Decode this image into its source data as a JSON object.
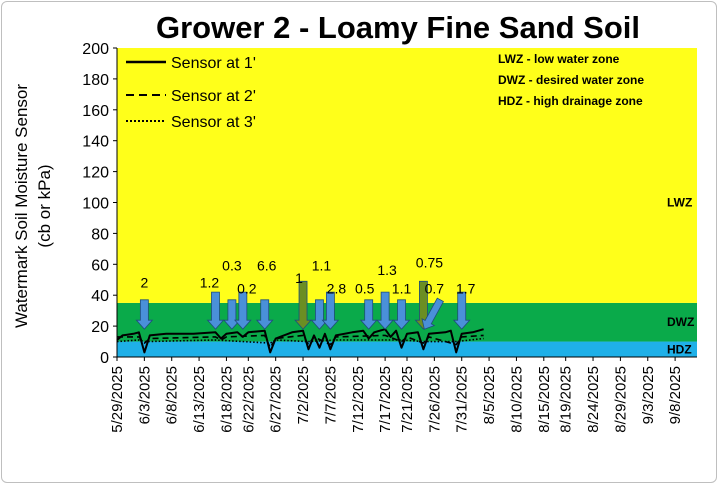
{
  "chart_data": {
    "type": "line",
    "title": "Grower 2 - Loamy Fine Sand Soil",
    "ylabel_line1": "Watermark Soil Moisture Sensor",
    "ylabel_line2": "(cb or kPa)",
    "ylim": [
      0,
      200
    ],
    "yticks": [
      0,
      20,
      40,
      60,
      80,
      100,
      120,
      140,
      160,
      180,
      200
    ],
    "xlim": [
      "2025-05-29",
      "2025-09-12"
    ],
    "xticks": [
      {
        "date": "2025-05-29",
        "label": "5/29/2025"
      },
      {
        "date": "2025-06-03",
        "label": "6/3/2025"
      },
      {
        "date": "2025-06-08",
        "label": "6/8/2025"
      },
      {
        "date": "2025-06-13",
        "label": "6/13/2025"
      },
      {
        "date": "2025-06-18",
        "label": "6/18/2025"
      },
      {
        "date": "2025-06-22",
        "label": "6/22/2025"
      },
      {
        "date": "2025-06-27",
        "label": "6/27/2025"
      },
      {
        "date": "2025-07-02",
        "label": "7/2/2025"
      },
      {
        "date": "2025-07-07",
        "label": "7/7/2025"
      },
      {
        "date": "2025-07-12",
        "label": "7/12/2025"
      },
      {
        "date": "2025-07-17",
        "label": "7/17/2025"
      },
      {
        "date": "2025-07-21",
        "label": "7/21/2025"
      },
      {
        "date": "2025-07-26",
        "label": "7/26/2025"
      },
      {
        "date": "2025-07-31",
        "label": "7/31/2025"
      },
      {
        "date": "2025-08-05",
        "label": "8/5/2025"
      },
      {
        "date": "2025-08-10",
        "label": "8/10/2025"
      },
      {
        "date": "2025-08-15",
        "label": "8/15/2025"
      },
      {
        "date": "2025-08-19",
        "label": "8/19/2025"
      },
      {
        "date": "2025-08-24",
        "label": "8/24/2025"
      },
      {
        "date": "2025-08-29",
        "label": "8/29/2025"
      },
      {
        "date": "2025-09-03",
        "label": "9/3/2025"
      },
      {
        "date": "2025-09-08",
        "label": "9/8/2025"
      }
    ],
    "zones": [
      {
        "name": "HDZ",
        "from": 0,
        "to": 10,
        "color": "#1fb0e8"
      },
      {
        "name": "DWZ",
        "from": 10,
        "to": 35,
        "color": "#0aaa4a"
      },
      {
        "name": "LWZ",
        "from": 35,
        "to": 200,
        "color": "#ffff1a"
      }
    ],
    "zone_definitions": [
      "LWZ  - low water zone",
      "DWZ - desired water zone",
      "HDZ - high drainage zone"
    ],
    "legend_position": "top-left",
    "series": [
      {
        "name": "Sensor at 1'",
        "dash": "solid",
        "color": "#000000",
        "points": [
          [
            "2025-05-29",
            11
          ],
          [
            "2025-05-30",
            14
          ],
          [
            "2025-06-01",
            15
          ],
          [
            "2025-06-02",
            16
          ],
          [
            "2025-06-03",
            3
          ],
          [
            "2025-06-04",
            14
          ],
          [
            "2025-06-07",
            15
          ],
          [
            "2025-06-12",
            15
          ],
          [
            "2025-06-16",
            16
          ],
          [
            "2025-06-17",
            12
          ],
          [
            "2025-06-18",
            15
          ],
          [
            "2025-06-20",
            16
          ],
          [
            "2025-06-21",
            13
          ],
          [
            "2025-06-22",
            16
          ],
          [
            "2025-06-25",
            17
          ],
          [
            "2025-06-26",
            3
          ],
          [
            "2025-06-27",
            12
          ],
          [
            "2025-06-30",
            16
          ],
          [
            "2025-07-02",
            17
          ],
          [
            "2025-07-03",
            5
          ],
          [
            "2025-07-04",
            14
          ],
          [
            "2025-07-05",
            6
          ],
          [
            "2025-07-06",
            15
          ],
          [
            "2025-07-07",
            5
          ],
          [
            "2025-07-08",
            14
          ],
          [
            "2025-07-11",
            16
          ],
          [
            "2025-07-13",
            17
          ],
          [
            "2025-07-14",
            12
          ],
          [
            "2025-07-15",
            16
          ],
          [
            "2025-07-17",
            18
          ],
          [
            "2025-07-18",
            13
          ],
          [
            "2025-07-19",
            17
          ],
          [
            "2025-07-20",
            6
          ],
          [
            "2025-07-21",
            15
          ],
          [
            "2025-07-23",
            16
          ],
          [
            "2025-07-24",
            5
          ],
          [
            "2025-07-25",
            15
          ],
          [
            "2025-07-28",
            16
          ],
          [
            "2025-07-29",
            17
          ],
          [
            "2025-07-30",
            3
          ],
          [
            "2025-07-31",
            15
          ],
          [
            "2025-08-02",
            16
          ],
          [
            "2025-08-04",
            18
          ]
        ]
      },
      {
        "name": "Sensor at 2'",
        "dash": "dashed",
        "color": "#000000",
        "points": [
          [
            "2025-05-29",
            13
          ],
          [
            "2025-06-02",
            13
          ],
          [
            "2025-06-03",
            9
          ],
          [
            "2025-06-04",
            12
          ],
          [
            "2025-06-16",
            13
          ],
          [
            "2025-06-17",
            11
          ],
          [
            "2025-06-18",
            13
          ],
          [
            "2025-06-25",
            14
          ],
          [
            "2025-06-26",
            6
          ],
          [
            "2025-06-27",
            12
          ],
          [
            "2025-07-02",
            14
          ],
          [
            "2025-07-03",
            8
          ],
          [
            "2025-07-04",
            13
          ],
          [
            "2025-07-07",
            8
          ],
          [
            "2025-07-08",
            13
          ],
          [
            "2025-07-17",
            14
          ],
          [
            "2025-07-20",
            10
          ],
          [
            "2025-07-21",
            13
          ],
          [
            "2025-07-24",
            9
          ],
          [
            "2025-07-25",
            13
          ],
          [
            "2025-07-30",
            8
          ],
          [
            "2025-07-31",
            13
          ],
          [
            "2025-08-04",
            14
          ]
        ]
      },
      {
        "name": "Sensor at 3'",
        "dash": "dotted",
        "color": "#000000",
        "points": [
          [
            "2025-05-29",
            10
          ],
          [
            "2025-06-02",
            11
          ],
          [
            "2025-06-03",
            10
          ],
          [
            "2025-06-16",
            11
          ],
          [
            "2025-06-26",
            9
          ],
          [
            "2025-06-27",
            11
          ],
          [
            "2025-07-03",
            10
          ],
          [
            "2025-07-08",
            11
          ],
          [
            "2025-07-20",
            11
          ],
          [
            "2025-07-24",
            10
          ],
          [
            "2025-07-30",
            10
          ],
          [
            "2025-08-04",
            12
          ]
        ]
      }
    ],
    "irrigation_events": [
      {
        "date": "2025-06-03",
        "amount": "2",
        "color": "#4a90d9",
        "shape": "straight"
      },
      {
        "date": "2025-06-16",
        "amount": "1.2",
        "color": "#4a90d9",
        "shape": "straight"
      },
      {
        "date": "2025-06-19",
        "amount": "0.3",
        "color": "#4a90d9",
        "shape": "straight"
      },
      {
        "date": "2025-06-21",
        "amount": "0.2",
        "color": "#4a90d9",
        "shape": "straight"
      },
      {
        "date": "2025-06-25",
        "amount": "6.6",
        "color": "#4a90d9",
        "shape": "straight"
      },
      {
        "date": "2025-07-02",
        "amount": "1",
        "color": "#6b8e23",
        "shape": "straight"
      },
      {
        "date": "2025-07-05",
        "amount": "1.1",
        "color": "#4a90d9",
        "shape": "straight"
      },
      {
        "date": "2025-07-07",
        "amount": "2.8",
        "color": "#4a90d9",
        "shape": "straight"
      },
      {
        "date": "2025-07-14",
        "amount": "0.5",
        "color": "#4a90d9",
        "shape": "straight"
      },
      {
        "date": "2025-07-17",
        "amount": "1.3",
        "color": "#4a90d9",
        "shape": "straight"
      },
      {
        "date": "2025-07-20",
        "amount": "1.1",
        "color": "#4a90d9",
        "shape": "straight"
      },
      {
        "date": "2025-07-24",
        "amount": "0.75",
        "color": "#6b8e23",
        "shape": "straight"
      },
      {
        "date": "2025-07-26",
        "amount": "0.7",
        "color": "#4a90d9",
        "shape": "diagonal"
      },
      {
        "date": "2025-07-31",
        "amount": "1.7",
        "color": "#4a90d9",
        "shape": "straight"
      }
    ]
  }
}
